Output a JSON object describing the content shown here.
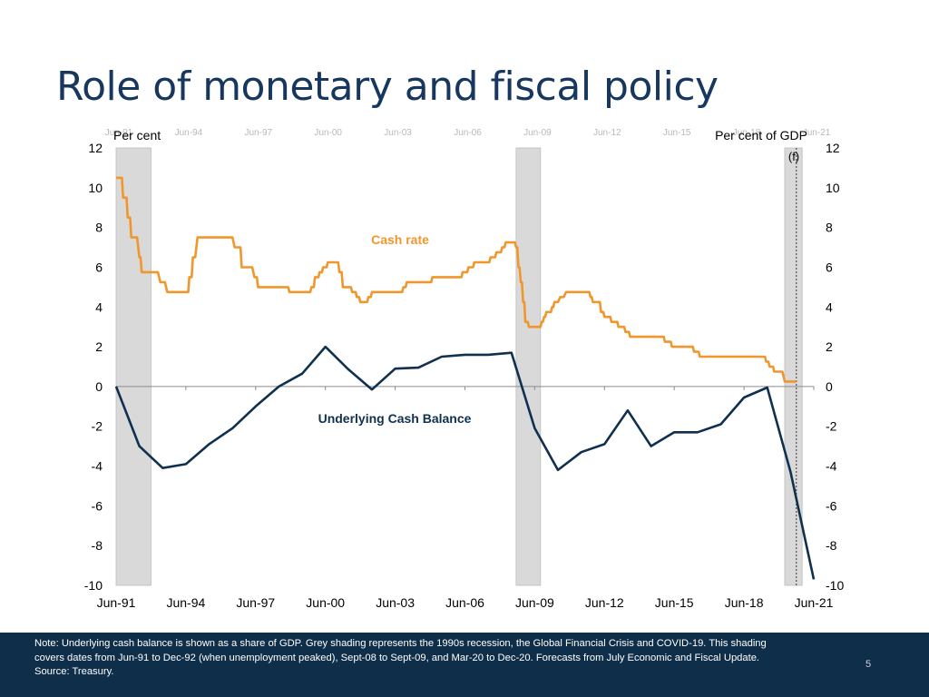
{
  "slide": {
    "title": "Role of monetary and fiscal policy",
    "note_1": "Note: Underlying cash balance is shown as a share of GDP. Grey shading represents the 1990s recession, the Global Financial Crisis and COVID-19. This shading covers dates from Jun-91 to Dec-92 (when unemployment peaked),  Sept-08 to Sept-09, and Mar-20 to Dec-20. Forecasts from July Economic and Fiscal Update.",
    "note_2": "Source: Treasury.",
    "page_number": "5"
  },
  "chart_data": {
    "type": "line",
    "title": "",
    "y_left_label": "Per cent",
    "y_right_label": "Per cent of GDP",
    "ylim": [
      -10,
      12
    ],
    "y_ticks": [
      "12",
      "10",
      "8",
      "6",
      "4",
      "2",
      "0",
      "-2",
      "-4",
      "-6",
      "-8",
      "-10"
    ],
    "x_range": [
      1991.5,
      2021.5
    ],
    "x_ticks": [
      "Jun-91",
      "Jun-94",
      "Jun-97",
      "Jun-00",
      "Jun-03",
      "Jun-06",
      "Jun-09",
      "Jun-12",
      "Jun-15",
      "Jun-18",
      "Jun-21"
    ],
    "x_ticks_faint": [
      "Jun-91",
      "Jun-94",
      "Jun-97",
      "Jun-00",
      "Jun-03",
      "Jun-06",
      "Jun-09",
      "Jun-12",
      "Jun-15",
      "Jun-18",
      "Jun-21"
    ],
    "forecast_label": "(f)",
    "forecast_start": 2020.75,
    "shaded_periods": [
      {
        "name": "1990s recession",
        "start": 1991.5,
        "end": 1993.0
      },
      {
        "name": "Global Financial Crisis",
        "start": 2008.7,
        "end": 2009.75
      },
      {
        "name": "COVID-19",
        "start": 2020.25,
        "end": 2021.0
      }
    ],
    "series": [
      {
        "name": "Cash rate",
        "color": "#f0962d",
        "label": "Cash rate",
        "step": true,
        "points": [
          [
            1991.5,
            10.5
          ],
          [
            1991.75,
            10.5
          ],
          [
            1991.8,
            9.5
          ],
          [
            1991.95,
            9.5
          ],
          [
            1992.0,
            8.5
          ],
          [
            1992.1,
            8.5
          ],
          [
            1992.15,
            7.5
          ],
          [
            1992.4,
            7.5
          ],
          [
            1992.5,
            6.5
          ],
          [
            1992.55,
            6.5
          ],
          [
            1992.6,
            5.75
          ],
          [
            1993.3,
            5.75
          ],
          [
            1993.4,
            5.25
          ],
          [
            1993.6,
            5.25
          ],
          [
            1993.7,
            4.75
          ],
          [
            1994.6,
            4.75
          ],
          [
            1994.65,
            5.5
          ],
          [
            1994.75,
            5.5
          ],
          [
            1994.8,
            6.5
          ],
          [
            1994.9,
            6.5
          ],
          [
            1995.0,
            7.5
          ],
          [
            1996.5,
            7.5
          ],
          [
            1996.6,
            7.0
          ],
          [
            1996.85,
            7.0
          ],
          [
            1996.9,
            6.0
          ],
          [
            1997.35,
            6.0
          ],
          [
            1997.45,
            5.5
          ],
          [
            1997.55,
            5.5
          ],
          [
            1997.6,
            5.0
          ],
          [
            1998.9,
            5.0
          ],
          [
            1998.95,
            4.75
          ],
          [
            1999.85,
            4.75
          ],
          [
            1999.9,
            5.0
          ],
          [
            2000.0,
            5.0
          ],
          [
            2000.05,
            5.5
          ],
          [
            2000.2,
            5.5
          ],
          [
            2000.25,
            5.75
          ],
          [
            2000.35,
            5.75
          ],
          [
            2000.4,
            6.0
          ],
          [
            2000.55,
            6.0
          ],
          [
            2000.6,
            6.25
          ],
          [
            2001.05,
            6.25
          ],
          [
            2001.1,
            5.75
          ],
          [
            2001.2,
            5.75
          ],
          [
            2001.25,
            5.0
          ],
          [
            2001.6,
            5.0
          ],
          [
            2001.65,
            4.75
          ],
          [
            2001.8,
            4.75
          ],
          [
            2001.85,
            4.5
          ],
          [
            2001.95,
            4.5
          ],
          [
            2002.0,
            4.25
          ],
          [
            2002.3,
            4.25
          ],
          [
            2002.35,
            4.5
          ],
          [
            2002.45,
            4.5
          ],
          [
            2002.5,
            4.75
          ],
          [
            2003.8,
            4.75
          ],
          [
            2003.85,
            5.0
          ],
          [
            2003.95,
            5.0
          ],
          [
            2004.0,
            5.25
          ],
          [
            2005.05,
            5.25
          ],
          [
            2005.1,
            5.5
          ],
          [
            2006.35,
            5.5
          ],
          [
            2006.4,
            5.75
          ],
          [
            2006.6,
            5.75
          ],
          [
            2006.65,
            6.0
          ],
          [
            2006.85,
            6.0
          ],
          [
            2006.9,
            6.25
          ],
          [
            2007.55,
            6.25
          ],
          [
            2007.6,
            6.5
          ],
          [
            2007.8,
            6.5
          ],
          [
            2007.85,
            6.75
          ],
          [
            2008.05,
            6.75
          ],
          [
            2008.1,
            7.0
          ],
          [
            2008.2,
            7.0
          ],
          [
            2008.25,
            7.25
          ],
          [
            2008.65,
            7.25
          ],
          [
            2008.7,
            7.0
          ],
          [
            2008.75,
            7.0
          ],
          [
            2008.8,
            6.0
          ],
          [
            2008.85,
            6.0
          ],
          [
            2008.9,
            5.25
          ],
          [
            2008.95,
            5.25
          ],
          [
            2009.0,
            4.25
          ],
          [
            2009.05,
            4.25
          ],
          [
            2009.1,
            3.25
          ],
          [
            2009.2,
            3.25
          ],
          [
            2009.25,
            3.0
          ],
          [
            2009.75,
            3.0
          ],
          [
            2009.8,
            3.25
          ],
          [
            2009.85,
            3.25
          ],
          [
            2009.9,
            3.5
          ],
          [
            2009.95,
            3.5
          ],
          [
            2010.0,
            3.75
          ],
          [
            2010.2,
            3.75
          ],
          [
            2010.25,
            4.0
          ],
          [
            2010.3,
            4.0
          ],
          [
            2010.35,
            4.25
          ],
          [
            2010.5,
            4.25
          ],
          [
            2010.6,
            4.5
          ],
          [
            2010.75,
            4.5
          ],
          [
            2010.85,
            4.75
          ],
          [
            2011.85,
            4.75
          ],
          [
            2011.9,
            4.5
          ],
          [
            2011.95,
            4.5
          ],
          [
            2012.0,
            4.25
          ],
          [
            2012.3,
            4.25
          ],
          [
            2012.35,
            3.75
          ],
          [
            2012.45,
            3.75
          ],
          [
            2012.5,
            3.5
          ],
          [
            2012.75,
            3.5
          ],
          [
            2012.8,
            3.25
          ],
          [
            2013.05,
            3.25
          ],
          [
            2013.1,
            3.0
          ],
          [
            2013.35,
            3.0
          ],
          [
            2013.4,
            2.75
          ],
          [
            2013.55,
            2.75
          ],
          [
            2013.6,
            2.5
          ],
          [
            2015.05,
            2.5
          ],
          [
            2015.1,
            2.25
          ],
          [
            2015.35,
            2.25
          ],
          [
            2015.4,
            2.0
          ],
          [
            2016.3,
            2.0
          ],
          [
            2016.35,
            1.75
          ],
          [
            2016.55,
            1.75
          ],
          [
            2016.6,
            1.5
          ],
          [
            2019.4,
            1.5
          ],
          [
            2019.45,
            1.25
          ],
          [
            2019.55,
            1.25
          ],
          [
            2019.6,
            1.0
          ],
          [
            2019.75,
            1.0
          ],
          [
            2019.8,
            0.75
          ],
          [
            2020.15,
            0.75
          ],
          [
            2020.2,
            0.5
          ],
          [
            2020.25,
            0.25
          ],
          [
            2020.75,
            0.25
          ]
        ]
      },
      {
        "name": "Underlying Cash Balance",
        "color": "#10304f",
        "label": "Underlying Cash Balance",
        "step": false,
        "points": [
          [
            1991.5,
            0.0
          ],
          [
            1992.5,
            -3.0
          ],
          [
            1993.5,
            -4.1
          ],
          [
            1994.5,
            -3.9
          ],
          [
            1995.5,
            -2.9
          ],
          [
            1996.5,
            -2.1
          ],
          [
            1997.5,
            -1.0
          ],
          [
            1998.5,
            0.0
          ],
          [
            1999.5,
            0.65
          ],
          [
            2000.5,
            2.0
          ],
          [
            2001.5,
            0.85
          ],
          [
            2002.5,
            -0.15
          ],
          [
            2003.5,
            0.9
          ],
          [
            2004.5,
            0.95
          ],
          [
            2005.5,
            1.5
          ],
          [
            2006.5,
            1.6
          ],
          [
            2007.5,
            1.6
          ],
          [
            2008.5,
            1.7
          ],
          [
            2009.5,
            -2.1
          ],
          [
            2010.5,
            -4.2
          ],
          [
            2011.5,
            -3.3
          ],
          [
            2012.5,
            -2.9
          ],
          [
            2013.5,
            -1.2
          ],
          [
            2014.5,
            -3.0
          ],
          [
            2015.5,
            -2.3
          ],
          [
            2016.5,
            -2.3
          ],
          [
            2017.5,
            -1.9
          ],
          [
            2018.5,
            -0.55
          ],
          [
            2019.5,
            -0.05
          ],
          [
            2020.5,
            -4.3
          ],
          [
            2021.5,
            -9.7
          ]
        ]
      }
    ]
  }
}
